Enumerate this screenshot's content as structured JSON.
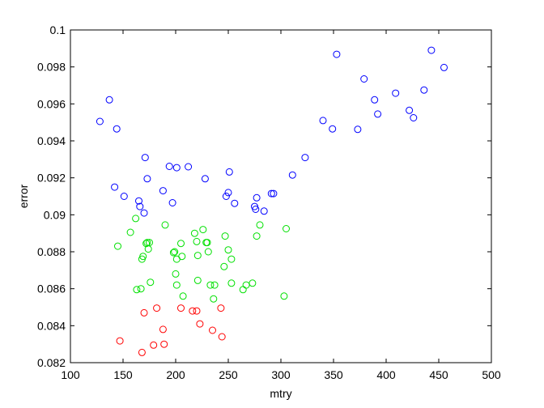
{
  "chart_data": {
    "type": "scatter",
    "xlabel": "mtry",
    "ylabel": "error",
    "xlim": [
      100,
      500
    ],
    "ylim": [
      0.082,
      0.1
    ],
    "xticks": [
      100,
      150,
      200,
      250,
      300,
      350,
      400,
      450,
      500
    ],
    "yticks": [
      0.082,
      0.084,
      0.086,
      0.088,
      0.09,
      0.092,
      0.094,
      0.096,
      0.098,
      0.1
    ],
    "ytick_labels": [
      "0.082",
      "0.084",
      "0.086",
      "0.088",
      "0.09",
      "0.092",
      "0.094",
      "0.096",
      "0.098",
      "0.1"
    ],
    "grid": false,
    "legend": "none",
    "marker": "open-circle",
    "series": [
      {
        "color": "#0000ff",
        "points": [
          [
            128,
            0.09505
          ],
          [
            137,
            0.09622
          ],
          [
            144,
            0.09465
          ],
          [
            142,
            0.0915
          ],
          [
            151,
            0.091
          ],
          [
            165,
            0.09075
          ],
          [
            166,
            0.09045
          ],
          [
            170,
            0.0901
          ],
          [
            171,
            0.0931
          ],
          [
            173,
            0.09195
          ],
          [
            188,
            0.0913
          ],
          [
            194,
            0.09262
          ],
          [
            197,
            0.09065
          ],
          [
            201,
            0.09255
          ],
          [
            212,
            0.0926
          ],
          [
            228,
            0.09195
          ],
          [
            248,
            0.091
          ],
          [
            250,
            0.0912
          ],
          [
            251,
            0.09232
          ],
          [
            256,
            0.09062
          ],
          [
            275,
            0.09045
          ],
          [
            276,
            0.0903
          ],
          [
            277,
            0.09092
          ],
          [
            284,
            0.0902
          ],
          [
            291,
            0.09115
          ],
          [
            293,
            0.09115
          ],
          [
            311,
            0.09215
          ],
          [
            323,
            0.0931
          ],
          [
            340,
            0.0951
          ],
          [
            349,
            0.09465
          ],
          [
            353,
            0.09868
          ],
          [
            373,
            0.09462
          ],
          [
            379,
            0.09735
          ],
          [
            389,
            0.09622
          ],
          [
            392,
            0.09545
          ],
          [
            409,
            0.09658
          ],
          [
            422,
            0.09565
          ],
          [
            426,
            0.09525
          ],
          [
            436,
            0.09675
          ],
          [
            443,
            0.0989
          ],
          [
            455,
            0.09797
          ]
        ]
      },
      {
        "color": "#00e000",
        "points": [
          [
            145,
            0.0883
          ],
          [
            157,
            0.08905
          ],
          [
            162,
            0.0898
          ],
          [
            163,
            0.08595
          ],
          [
            167,
            0.086
          ],
          [
            168,
            0.0876
          ],
          [
            169,
            0.08775
          ],
          [
            172,
            0.08845
          ],
          [
            173,
            0.0885
          ],
          [
            174,
            0.08815
          ],
          [
            175,
            0.0885
          ],
          [
            176,
            0.08635
          ],
          [
            190,
            0.08945
          ],
          [
            198,
            0.08795
          ],
          [
            199,
            0.088
          ],
          [
            200,
            0.0868
          ],
          [
            201,
            0.0862
          ],
          [
            201,
            0.0876
          ],
          [
            205,
            0.08845
          ],
          [
            206,
            0.08775
          ],
          [
            207,
            0.0856
          ],
          [
            218,
            0.089
          ],
          [
            220,
            0.08855
          ],
          [
            221,
            0.0878
          ],
          [
            221,
            0.08645
          ],
          [
            226,
            0.0892
          ],
          [
            229,
            0.0885
          ],
          [
            230,
            0.0885
          ],
          [
            231,
            0.088
          ],
          [
            233,
            0.0862
          ],
          [
            236,
            0.08545
          ],
          [
            237,
            0.0862
          ],
          [
            246,
            0.0872
          ],
          [
            247,
            0.08885
          ],
          [
            250,
            0.0881
          ],
          [
            253,
            0.0876
          ],
          [
            253,
            0.0863
          ],
          [
            264,
            0.08595
          ],
          [
            267,
            0.0862
          ],
          [
            273,
            0.0863
          ],
          [
            277,
            0.08885
          ],
          [
            280,
            0.08945
          ],
          [
            303,
            0.0856
          ],
          [
            305,
            0.08925
          ]
        ]
      },
      {
        "color": "#ff0000",
        "points": [
          [
            147,
            0.08318
          ],
          [
            168,
            0.08255
          ],
          [
            170,
            0.0847
          ],
          [
            179,
            0.08295
          ],
          [
            182,
            0.08495
          ],
          [
            188,
            0.0838
          ],
          [
            189,
            0.083
          ],
          [
            205,
            0.08495
          ],
          [
            216,
            0.0848
          ],
          [
            220,
            0.0848
          ],
          [
            223,
            0.0841
          ],
          [
            235,
            0.08375
          ],
          [
            243,
            0.08495
          ],
          [
            244,
            0.0834
          ]
        ]
      }
    ]
  }
}
